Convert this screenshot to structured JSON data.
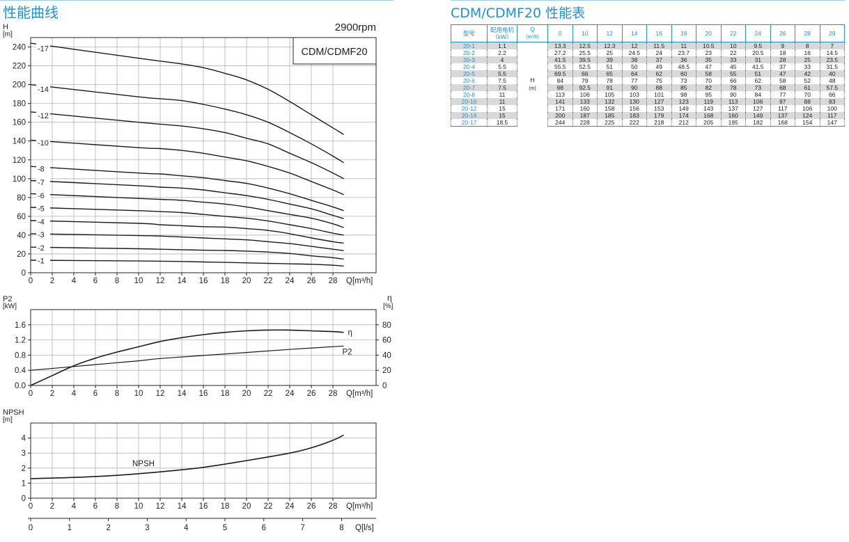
{
  "header": {
    "curve_title": "性能曲线",
    "table_title": "CDM/CDMF20 性能表"
  },
  "chart_data": [
    {
      "type": "line",
      "title": "2900rpm",
      "legend_box": "CDM/CDMF20",
      "ylabel": "H",
      "yunit": "[m]",
      "xlabel": "Q[m³/h]",
      "xlim": [
        0,
        32
      ],
      "ylim": [
        0,
        250
      ],
      "xticks": [
        "0",
        "2",
        "4",
        "6",
        "8",
        "10",
        "12",
        "14",
        "16",
        "18",
        "20",
        "22",
        "24",
        "26",
        "28"
      ],
      "yticks": [
        "0",
        "20",
        "40",
        "60",
        "80",
        "100",
        "120",
        "140",
        "160",
        "180",
        "200",
        "220",
        "240"
      ],
      "grid": true,
      "x": [
        0,
        10,
        12,
        14,
        16,
        18,
        20,
        22,
        24,
        26,
        28,
        29
      ],
      "series": [
        {
          "name": "-1",
          "values": [
            13.3,
            12.5,
            12.3,
            12,
            11.5,
            11,
            10.5,
            10,
            9.5,
            9,
            8,
            7
          ]
        },
        {
          "name": "-2",
          "values": [
            27.2,
            25.5,
            25,
            24.5,
            24,
            23.7,
            23,
            22,
            20.5,
            18,
            16,
            14.5
          ]
        },
        {
          "name": "-3",
          "values": [
            41.5,
            39.5,
            39,
            38,
            37,
            36,
            35,
            33,
            31,
            28,
            25,
            23.5
          ]
        },
        {
          "name": "-4",
          "values": [
            55.5,
            52.5,
            51,
            50,
            49,
            48.5,
            47,
            45,
            41.5,
            37,
            33,
            31.5
          ]
        },
        {
          "name": "-5",
          "values": [
            69.5,
            66,
            65,
            64,
            62,
            60,
            58,
            55,
            51,
            47,
            42,
            40
          ]
        },
        {
          "name": "-6",
          "values": [
            84,
            79,
            78,
            77,
            75,
            73,
            70,
            66,
            62,
            58,
            52,
            48
          ]
        },
        {
          "name": "-7",
          "values": [
            98,
            92.5,
            91,
            90,
            88,
            85,
            82,
            78,
            73,
            68,
            61,
            57.5
          ]
        },
        {
          "name": "-8",
          "values": [
            113,
            106,
            105,
            103,
            101,
            98,
            95,
            90,
            84,
            77,
            70,
            66
          ]
        },
        {
          "name": "-10",
          "values": [
            141,
            133,
            132,
            130,
            127,
            123,
            119,
            113,
            106,
            97,
            88,
            83
          ]
        },
        {
          "name": "-12",
          "values": [
            171,
            160,
            158,
            156,
            153,
            149,
            143,
            137,
            127,
            117,
            106,
            100
          ]
        },
        {
          "name": "-14",
          "values": [
            200,
            187,
            185,
            183,
            179,
            174,
            168,
            160,
            149,
            137,
            124,
            117
          ]
        },
        {
          "name": "-17",
          "values": [
            244,
            228,
            225,
            222,
            218,
            212,
            205,
            195,
            182,
            168,
            154,
            147
          ]
        }
      ]
    },
    {
      "type": "line",
      "ylabel": "P2",
      "yunit": "[kW]",
      "y2label": "η",
      "y2unit": "[%]",
      "xlabel": "Q[m³/h]",
      "xlim": [
        0,
        32
      ],
      "ylim": [
        0,
        2.0
      ],
      "y2lim": [
        0,
        100
      ],
      "xticks": [
        "0",
        "2",
        "4",
        "6",
        "8",
        "10",
        "12",
        "14",
        "16",
        "18",
        "20",
        "22",
        "24",
        "26",
        "28"
      ],
      "yticks": [
        "0.0",
        "0.4",
        "0.8",
        "1.2",
        "1.6"
      ],
      "y2ticks": [
        "0",
        "20",
        "40",
        "60",
        "80"
      ],
      "grid": true,
      "series": [
        {
          "name": "P2",
          "axis": "left",
          "x": [
            0,
            4,
            8,
            10,
            12,
            16,
            20,
            24,
            29
          ],
          "values": [
            0.4,
            0.5,
            0.6,
            0.65,
            0.71,
            0.79,
            0.87,
            0.95,
            1.04
          ]
        },
        {
          "name": "η",
          "axis": "right",
          "x": [
            0,
            2,
            4,
            6,
            8,
            10,
            12,
            14,
            16,
            18,
            20,
            22,
            24,
            26,
            28,
            29
          ],
          "values": [
            0,
            13,
            26,
            36,
            44,
            51,
            58,
            63,
            67,
            70,
            72,
            73,
            73,
            72,
            71,
            70
          ]
        }
      ]
    },
    {
      "type": "line",
      "ylabel": "NPSH",
      "yunit": "[m]",
      "xlabel": "Q[m³/h]",
      "xlim": [
        0,
        32
      ],
      "ylim": [
        0,
        5
      ],
      "xticks": [
        "0",
        "2",
        "4",
        "6",
        "8",
        "10",
        "12",
        "14",
        "16",
        "18",
        "20",
        "22",
        "24",
        "26",
        "28"
      ],
      "yticks": [
        "0",
        "1",
        "2",
        "3",
        "4"
      ],
      "grid": true,
      "secondary_xlabel": "Q[l/s]",
      "secondary_xticks": [
        "0",
        "1",
        "2",
        "3",
        "4",
        "5",
        "6",
        "7",
        "8"
      ],
      "series": [
        {
          "name": "NPSH",
          "x": [
            0,
            4,
            8,
            12,
            16,
            20,
            24,
            26,
            28,
            29
          ],
          "values": [
            1.3,
            1.38,
            1.52,
            1.75,
            2.05,
            2.5,
            3.0,
            3.35,
            3.85,
            4.2
          ]
        }
      ]
    }
  ],
  "perf_table": {
    "headers": {
      "model": "型号",
      "motor": "配用电机",
      "motor_unit": "（kW）",
      "flow": "Q",
      "flow_unit": "(m³/h)",
      "flows": [
        "0",
        "10",
        "12",
        "14",
        "16",
        "18",
        "20",
        "22",
        "24",
        "26",
        "28",
        "29"
      ]
    },
    "head_label": "H",
    "head_unit": "(m)",
    "rows": [
      {
        "model": "20-1",
        "power": "1.1",
        "values": [
          "13.3",
          "12.5",
          "12.3",
          "12",
          "11.5",
          "11",
          "10.5",
          "10",
          "9.5",
          "9",
          "8",
          "7"
        ]
      },
      {
        "model": "20-2",
        "power": "2.2",
        "values": [
          "27.2",
          "25.5",
          "25",
          "24.5",
          "24",
          "23.7",
          "23",
          "22",
          "20.5",
          "18",
          "16",
          "14.5"
        ]
      },
      {
        "model": "20-3",
        "power": "4",
        "values": [
          "41.5",
          "39.5",
          "39",
          "38",
          "37",
          "36",
          "35",
          "33",
          "31",
          "28",
          "25",
          "23.5"
        ]
      },
      {
        "model": "20-4",
        "power": "5.5",
        "values": [
          "55.5",
          "52.5",
          "51",
          "50",
          "49",
          "48.5",
          "47",
          "45",
          "41.5",
          "37",
          "33",
          "31.5"
        ]
      },
      {
        "model": "20-5",
        "power": "5.5",
        "values": [
          "69.5",
          "66",
          "65",
          "64",
          "62",
          "60",
          "58",
          "55",
          "51",
          "47",
          "42",
          "40"
        ]
      },
      {
        "model": "20-6",
        "power": "7.5",
        "values": [
          "84",
          "79",
          "78",
          "77",
          "75",
          "73",
          "70",
          "66",
          "62",
          "58",
          "52",
          "48"
        ]
      },
      {
        "model": "20-7",
        "power": "7.5",
        "values": [
          "98",
          "92.5",
          "91",
          "90",
          "88",
          "85",
          "82",
          "78",
          "73",
          "68",
          "61",
          "57.5"
        ]
      },
      {
        "model": "20-8",
        "power": "11",
        "values": [
          "113",
          "106",
          "105",
          "103",
          "101",
          "98",
          "95",
          "90",
          "84",
          "77",
          "70",
          "66"
        ]
      },
      {
        "model": "20-10",
        "power": "11",
        "values": [
          "141",
          "133",
          "132",
          "130",
          "127",
          "123",
          "119",
          "113",
          "106",
          "97",
          "88",
          "83"
        ]
      },
      {
        "model": "20-12",
        "power": "15",
        "values": [
          "171",
          "160",
          "158",
          "156",
          "153",
          "149",
          "143",
          "137",
          "127",
          "117",
          "106",
          "100"
        ]
      },
      {
        "model": "20-14",
        "power": "15",
        "values": [
          "200",
          "187",
          "185",
          "183",
          "179",
          "174",
          "168",
          "160",
          "149",
          "137",
          "124",
          "117"
        ]
      },
      {
        "model": "20-17",
        "power": "18.5",
        "values": [
          "244",
          "228",
          "225",
          "222",
          "218",
          "212",
          "205",
          "195",
          "182",
          "168",
          "154",
          "147"
        ]
      }
    ]
  },
  "colors": {
    "accent": "#1e90d8",
    "row_shade": "#d9d9d9",
    "grid": "#b3b3b3",
    "curve": "#1a1a1a"
  }
}
